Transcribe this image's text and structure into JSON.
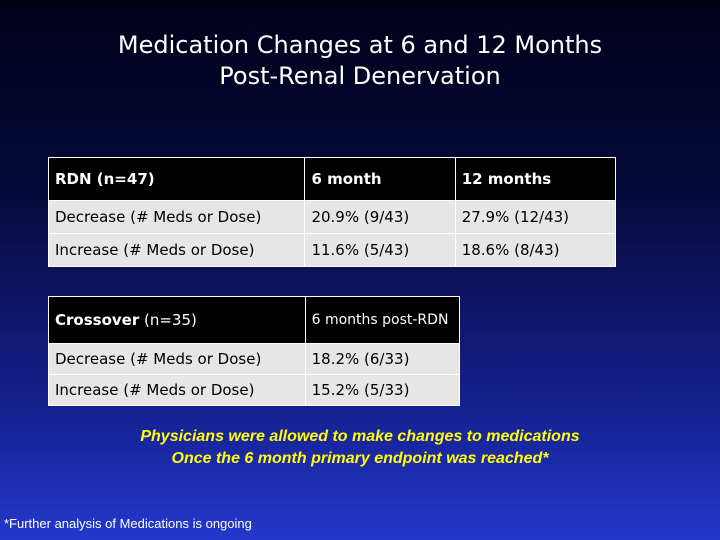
{
  "title": {
    "line1": "Medication Changes at 6 and 12 Months",
    "line2": "Post-Renal Denervation"
  },
  "rdn_table": {
    "headers": [
      "RDN (n=47)",
      "6 month",
      "12 months"
    ],
    "rows": [
      [
        "Decrease (# Meds or Dose)",
        "20.9% (9/43)",
        "27.9% (12/43)"
      ],
      [
        "Increase (# Meds or Dose)",
        "11.6% (5/43)",
        "18.6% (8/43)"
      ]
    ]
  },
  "crossover_table": {
    "header_label_bold": "Crossover",
    "header_label_n": " (n=35)",
    "header_col2": "6 months post-RDN",
    "rows": [
      [
        "Decrease (# Meds or Dose)",
        "18.2% (6/33)"
      ],
      [
        "Increase (# Meds or Dose)",
        "15.2% (5/33)"
      ]
    ]
  },
  "note": {
    "line1": "Physicians were allowed to make changes to medications",
    "line2": "Once the 6 month primary endpoint was reached*"
  },
  "footnote": "*Further analysis of Medications is ongoing",
  "colors": {
    "header_bg": "#000000",
    "row_bg": "#e6e6e6",
    "note_text": "#ffff00"
  }
}
